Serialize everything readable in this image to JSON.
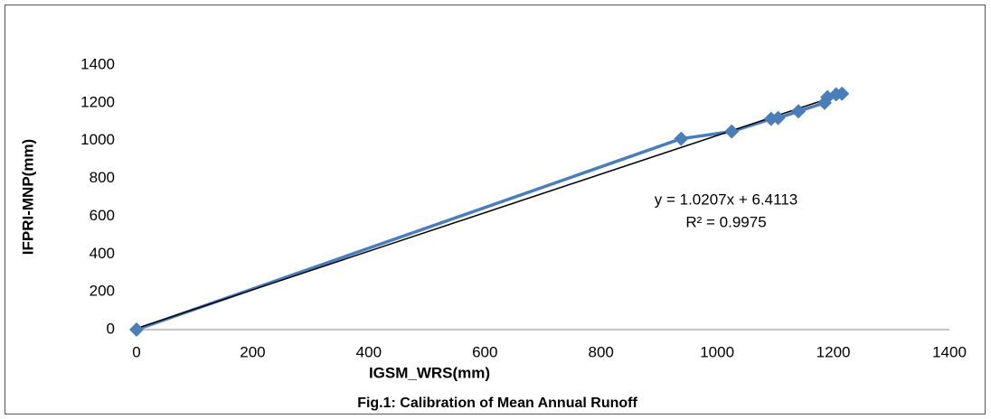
{
  "chart_data": {
    "type": "scatter",
    "title": "Fig.1: Calibration of Mean Annual Runoff",
    "x_label": "IGSM_WRS(mm)",
    "y_label": "IFPRI-MNP(mm)",
    "x": [
      0,
      938,
      1025,
      1093,
      1105,
      1140,
      1185,
      1190,
      1205,
      1215
    ],
    "series": [
      {
        "name": "IFPRI-MNP(mm)",
        "color": "#4a7ebb",
        "values": [
          0,
          1010,
          1048,
          1115,
          1120,
          1155,
          1200,
          1230,
          1245,
          1248
        ]
      }
    ],
    "trendline": {
      "slope": 1.0207,
      "intercept": 6.4113,
      "color": "#000000",
      "equation": "y = 1.0207x + 6.4113",
      "r_squared": "R² = 0.9975"
    },
    "xlim": [
      0,
      1400
    ],
    "xticks": [
      0,
      200,
      400,
      600,
      800,
      1000,
      1200,
      1400
    ],
    "ylim": [
      0,
      1400
    ],
    "yticks": [
      0,
      200,
      400,
      600,
      800,
      1000,
      1200,
      1400
    ],
    "grid": false
  }
}
